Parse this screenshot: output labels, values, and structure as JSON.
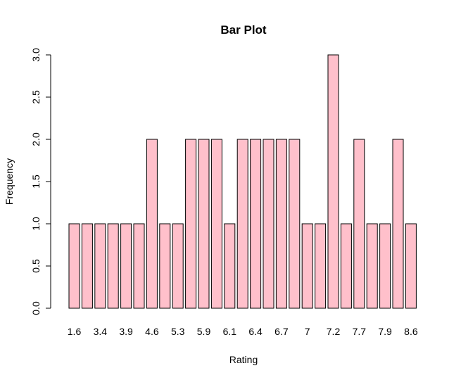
{
  "chart_data": {
    "type": "bar",
    "title": "Bar Plot",
    "xlabel": "Rating",
    "ylabel": "Frequency",
    "ylim": [
      0,
      3
    ],
    "yticks": [
      "0.0",
      "0.5",
      "1.0",
      "1.5",
      "2.0",
      "2.5",
      "3.0"
    ],
    "categories": [
      "1.6",
      "",
      "3.4",
      "",
      "3.9",
      "",
      "4.6",
      "",
      "5.3",
      "",
      "5.9",
      "",
      "6.1",
      "",
      "6.4",
      "",
      "6.7",
      "",
      "7",
      "",
      "7.2",
      "",
      "7.7",
      "",
      "7.9",
      "",
      "8.6"
    ],
    "values": [
      1,
      1,
      1,
      1,
      1,
      1,
      2,
      1,
      1,
      2,
      2,
      2,
      1,
      2,
      2,
      2,
      2,
      2,
      1,
      1,
      3,
      1,
      2,
      1,
      1,
      2,
      1
    ],
    "bar_color": "#FFC0CB",
    "border_color": "#000000",
    "grid": false
  }
}
